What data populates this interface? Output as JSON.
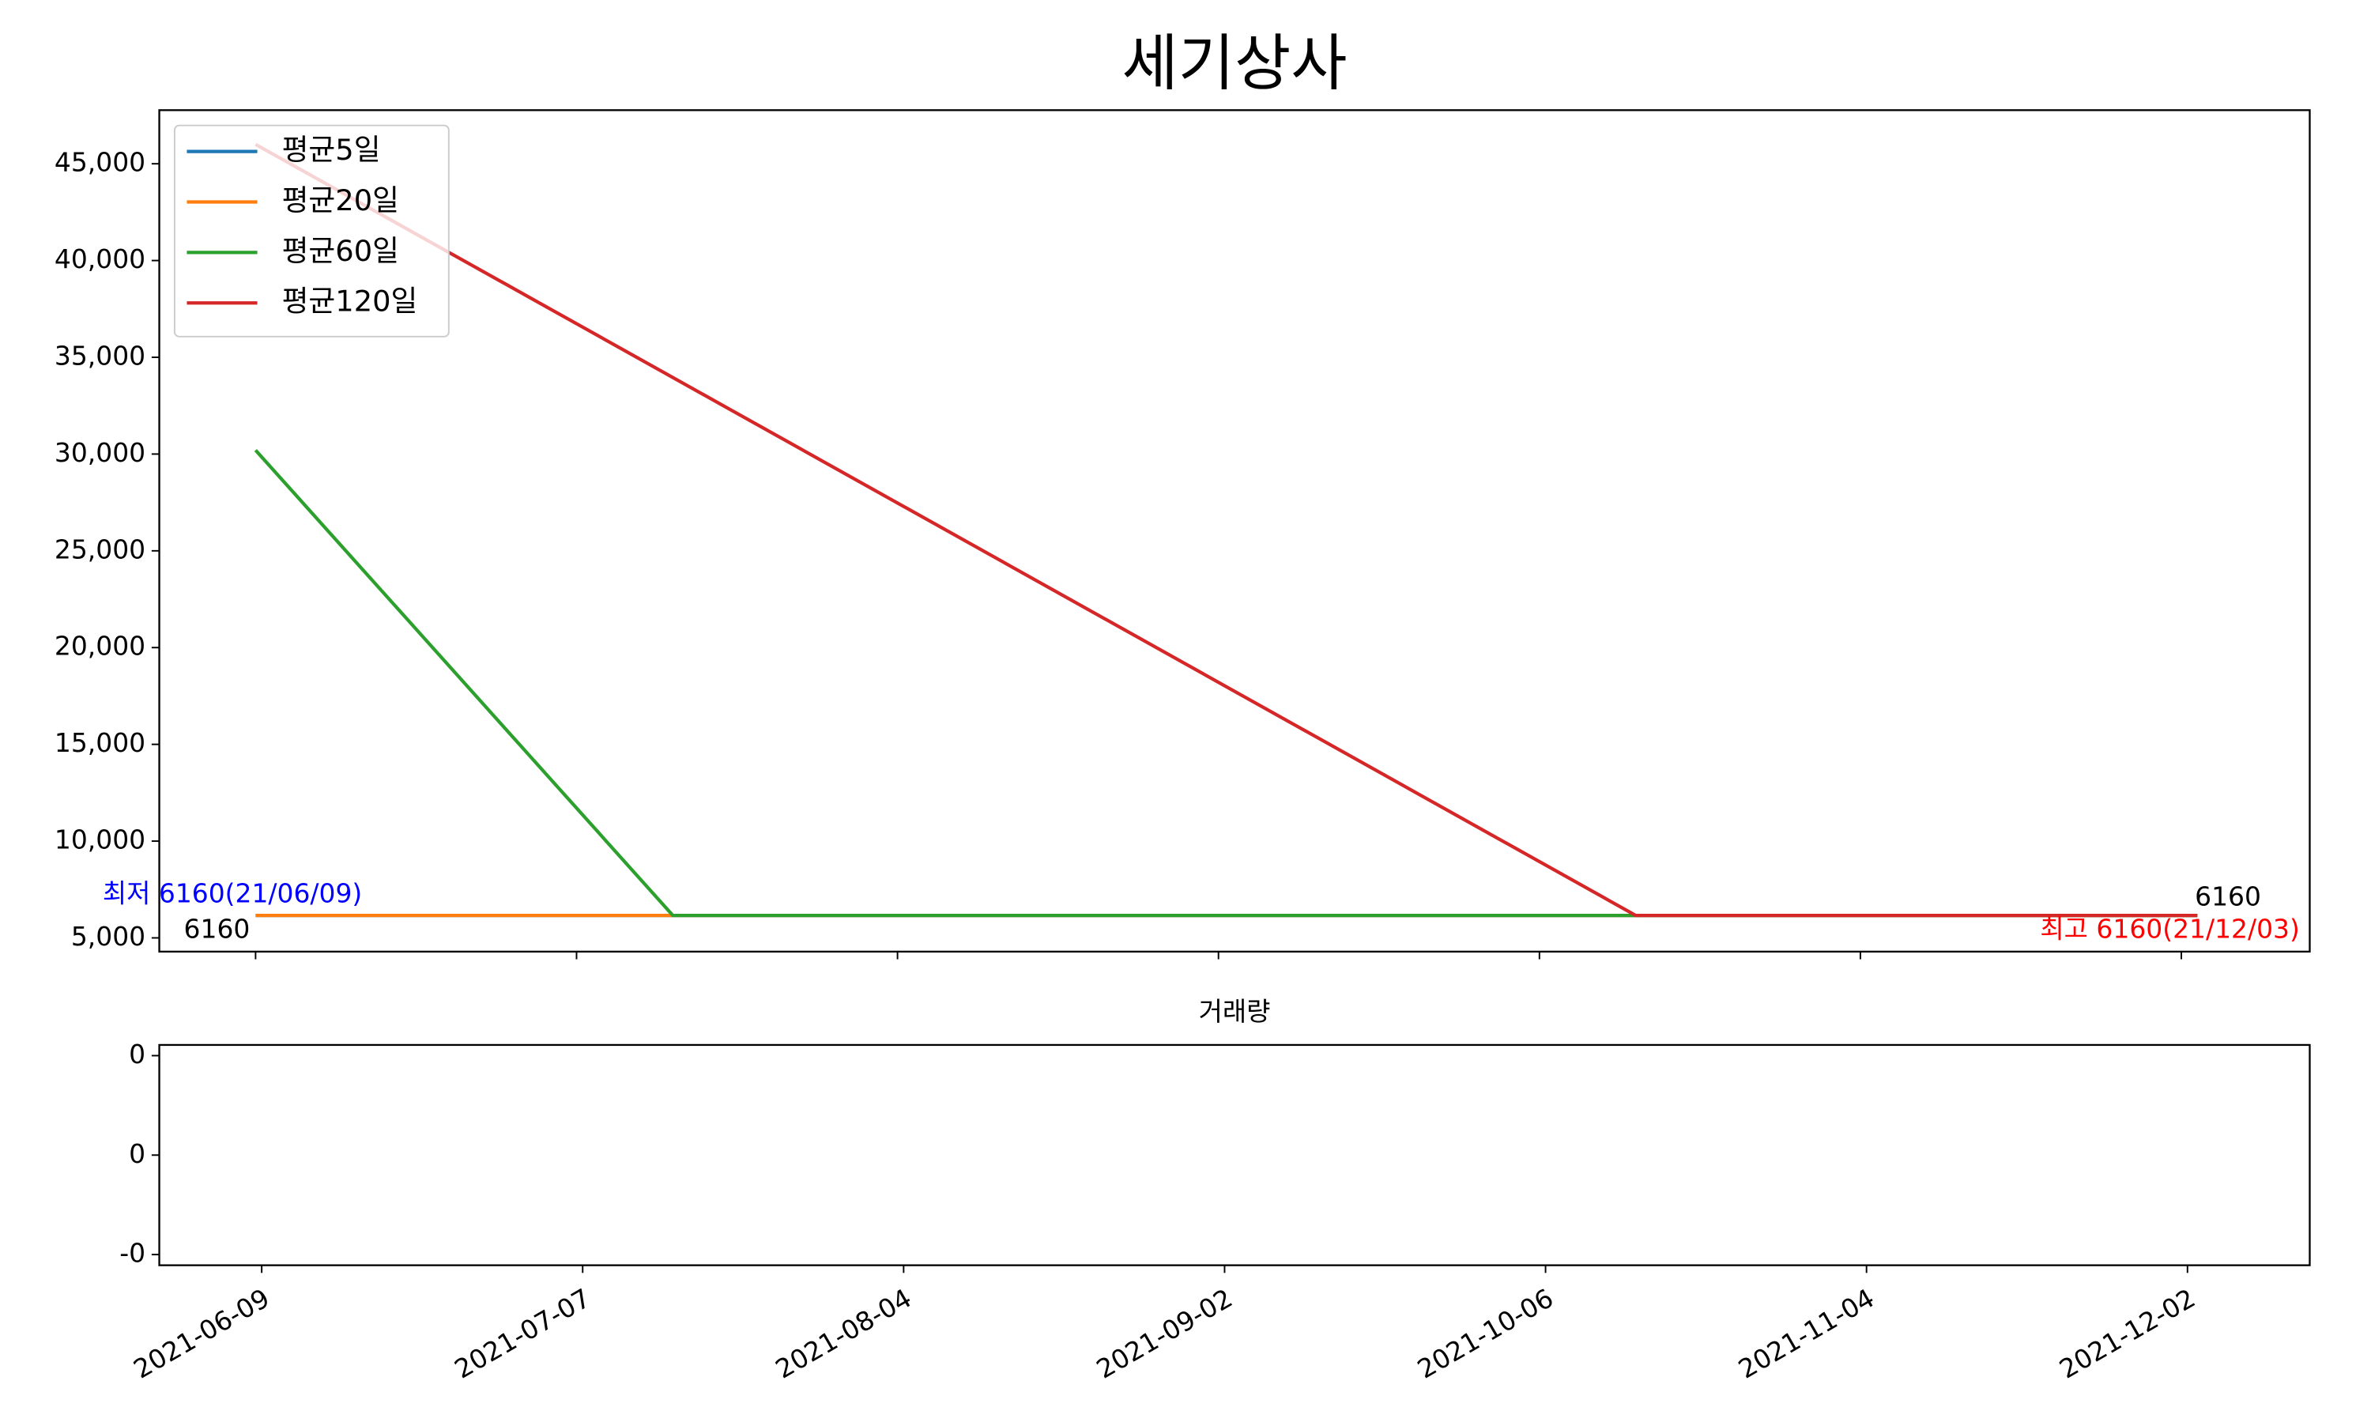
{
  "chart_data": {
    "type": "line",
    "title": "세기상사",
    "xlim": [
      -6,
      128
    ],
    "xticks": [
      {
        "value": 0,
        "label": "2021-06-09"
      },
      {
        "value": 20,
        "label": "2021-07-07"
      },
      {
        "value": 40,
        "label": "2021-08-04"
      },
      {
        "value": 60,
        "label": "2021-09-02"
      },
      {
        "value": 80,
        "label": "2021-10-06"
      },
      {
        "value": 100,
        "label": "2021-11-04"
      },
      {
        "value": 120,
        "label": "2021-12-02"
      }
    ],
    "ylim": [
      4290,
      47770
    ],
    "yticks": [
      {
        "value": 5000,
        "label": "5,000"
      },
      {
        "value": 10000,
        "label": "10,000"
      },
      {
        "value": 15000,
        "label": "15,000"
      },
      {
        "value": 20000,
        "label": "20,000"
      },
      {
        "value": 25000,
        "label": "25,000"
      },
      {
        "value": 30000,
        "label": "30,000"
      },
      {
        "value": 35000,
        "label": "35,000"
      },
      {
        "value": 40000,
        "label": "40,000"
      },
      {
        "value": 45000,
        "label": "45,000"
      }
    ],
    "legend": "upper left",
    "series": [
      {
        "name": "평균5일",
        "color": "#1f77b4",
        "x": [
          0,
          121
        ],
        "values": [
          6160,
          6160
        ]
      },
      {
        "name": "평균20일",
        "color": "#ff7f0e",
        "x": [
          0,
          121
        ],
        "values": [
          6160,
          6160
        ]
      },
      {
        "name": "평균60일",
        "color": "#2ca02c",
        "x": [
          0,
          26,
          121
        ],
        "values": [
          30200,
          6160,
          6160
        ]
      },
      {
        "name": "평균120일",
        "color": "#d62728",
        "x": [
          0,
          86,
          121
        ],
        "values": [
          46000,
          6160,
          6160
        ]
      }
    ],
    "annotations": [
      {
        "text": "최저 6160(21/06/09)",
        "color": "blue"
      },
      {
        "text": "6160",
        "color": "black"
      },
      {
        "text": "6160",
        "color": "black"
      },
      {
        "text": "최고 6160(21/12/03)",
        "color": "red"
      }
    ],
    "volume": {
      "title": "거래량",
      "ylim": [
        -0.0443,
        0.0443
      ],
      "yticks": [
        {
          "value": -0.04,
          "label": "-0"
        },
        0,
        {
          "value": 0.04,
          "label": "0"
        }
      ]
    }
  }
}
